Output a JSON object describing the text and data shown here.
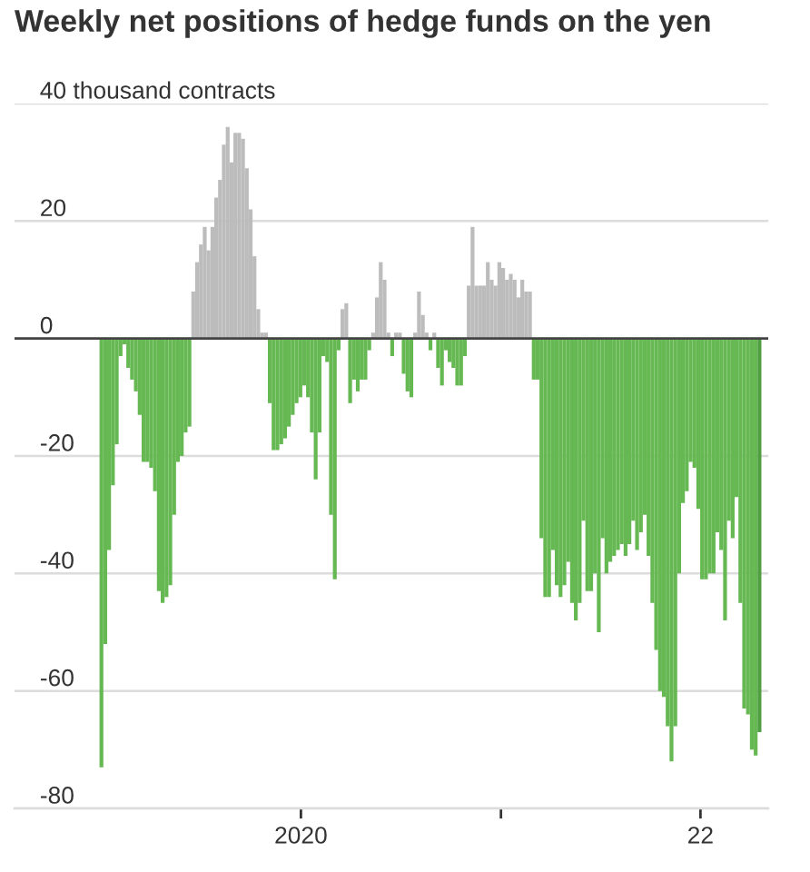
{
  "chart_data": {
    "type": "bar",
    "title": "Weekly net positions of hedge funds on the yen",
    "x": [
      "2019-01-01",
      "2019-01-08",
      "2019-01-15",
      "2019-01-22",
      "2019-01-29",
      "2019-02-05",
      "2019-02-12",
      "2019-02-19",
      "2019-02-26",
      "2019-03-05",
      "2019-03-12",
      "2019-03-19",
      "2019-03-26",
      "2019-04-02",
      "2019-04-09",
      "2019-04-16",
      "2019-04-23",
      "2019-04-30",
      "2019-05-07",
      "2019-05-14",
      "2019-05-21",
      "2019-05-28",
      "2019-06-04",
      "2019-06-11",
      "2019-06-18",
      "2019-06-25",
      "2019-07-02",
      "2019-07-09",
      "2019-07-16",
      "2019-07-23",
      "2019-07-30",
      "2019-08-06",
      "2019-08-13",
      "2019-08-20",
      "2019-08-27",
      "2019-09-03",
      "2019-09-10",
      "2019-09-17",
      "2019-09-24",
      "2019-10-01",
      "2019-10-08",
      "2019-10-15",
      "2019-10-22",
      "2019-10-29",
      "2019-11-05",
      "2019-11-12",
      "2019-11-19",
      "2019-11-26",
      "2019-12-03",
      "2019-12-10",
      "2019-12-17",
      "2019-12-24",
      "2019-12-31",
      "2020-01-07",
      "2020-01-14",
      "2020-01-21",
      "2020-01-28",
      "2020-02-04",
      "2020-02-11",
      "2020-02-18",
      "2020-02-25",
      "2020-03-03",
      "2020-03-10",
      "2020-03-17",
      "2020-03-24",
      "2020-03-31",
      "2020-04-07",
      "2020-04-14",
      "2020-04-21",
      "2020-04-28",
      "2020-05-05",
      "2020-05-12",
      "2020-05-19",
      "2020-05-26",
      "2020-06-02",
      "2020-06-09",
      "2020-06-16",
      "2020-06-23",
      "2020-06-30",
      "2020-07-07",
      "2020-07-14",
      "2020-07-21",
      "2020-07-28",
      "2020-08-04",
      "2020-08-11",
      "2020-08-18",
      "2020-08-25",
      "2020-09-01",
      "2020-09-08",
      "2020-09-15",
      "2020-09-22",
      "2020-09-29",
      "2020-10-06",
      "2020-10-13",
      "2020-10-20",
      "2020-10-27",
      "2020-11-03",
      "2020-11-10",
      "2020-11-17",
      "2020-11-24",
      "2020-12-01",
      "2020-12-08",
      "2020-12-15",
      "2020-12-22",
      "2020-12-29",
      "2021-01-05",
      "2021-01-12",
      "2021-01-19",
      "2021-01-26",
      "2021-02-02",
      "2021-02-09",
      "2021-02-16",
      "2021-02-23",
      "2021-03-02",
      "2021-03-09",
      "2021-03-16",
      "2021-03-23",
      "2021-03-30",
      "2021-04-06",
      "2021-04-13",
      "2021-04-20",
      "2021-04-27",
      "2021-05-04",
      "2021-05-11",
      "2021-05-18",
      "2021-05-25",
      "2021-06-01",
      "2021-06-08",
      "2021-06-15",
      "2021-06-22",
      "2021-06-29",
      "2021-07-06",
      "2021-07-13",
      "2021-07-20",
      "2021-07-27",
      "2021-08-03",
      "2021-08-10",
      "2021-08-17",
      "2021-08-24",
      "2021-08-31",
      "2021-09-07",
      "2021-09-14",
      "2021-09-21",
      "2021-09-28",
      "2021-10-05",
      "2021-10-12",
      "2021-10-19",
      "2021-10-26",
      "2021-11-02",
      "2021-11-09",
      "2021-11-16",
      "2021-11-23",
      "2021-11-30",
      "2021-12-07",
      "2021-12-14",
      "2021-12-21",
      "2021-12-28",
      "2022-01-04",
      "2022-01-11",
      "2022-01-18",
      "2022-01-25",
      "2022-02-01",
      "2022-02-08",
      "2022-02-15",
      "2022-02-22",
      "2022-03-01",
      "2022-03-08",
      "2022-03-15",
      "2022-03-22",
      "2022-03-29",
      "2022-04-05",
      "2022-04-12",
      "2022-04-19"
    ],
    "values": [
      -73,
      -52,
      -36,
      -25,
      -18,
      -3,
      -1,
      -5,
      -7,
      -9,
      -13,
      -21,
      -21,
      -22,
      -26,
      -43,
      -45,
      -44,
      -42,
      -30,
      -21,
      -20,
      -16,
      -15,
      8,
      13,
      16,
      19,
      15,
      19,
      24,
      27,
      33,
      36,
      30,
      35,
      35,
      34,
      29,
      22,
      14,
      5,
      1,
      1,
      -11,
      -19,
      -19,
      -18,
      -17,
      -15,
      -13,
      -11,
      -10,
      -8,
      -10,
      -16,
      -24,
      -16,
      -3,
      -4,
      -30,
      -41,
      -2,
      5,
      6,
      -11,
      -7,
      -9,
      -7,
      -7,
      -2,
      1,
      7,
      13,
      10,
      1,
      -3,
      1,
      1,
      -6,
      -9,
      -10,
      1,
      8,
      4,
      1,
      -2,
      1,
      -5,
      -8,
      -2,
      -4,
      -5,
      -8,
      -8,
      -3,
      9,
      19,
      9,
      9,
      9,
      13,
      10,
      9,
      13,
      12,
      10,
      11,
      10,
      7,
      10,
      8,
      8,
      -7,
      -7,
      -34,
      -44,
      -44,
      -36,
      -42,
      -44,
      -42,
      -38,
      -45,
      -48,
      -45,
      -31,
      -43,
      -43,
      -40,
      -50,
      -34,
      -40,
      -38,
      -37,
      -36,
      -35,
      -37,
      -35,
      -31,
      -36,
      -33,
      -30,
      -37,
      -45,
      -53,
      -60,
      -61,
      -66,
      -72,
      -66,
      -40,
      -28,
      -26,
      -21,
      -22,
      -29,
      -41,
      -41,
      -40,
      -40,
      -33,
      -36,
      -48,
      -31,
      -34,
      -27,
      -45,
      -63,
      -64,
      -70,
      -71,
      -67
    ],
    "colors": [
      "#66b853",
      "#66b853",
      "#66b853",
      "#66b853",
      "#66b853",
      "#66b853",
      "#66b853",
      "#66b853",
      "#66b853",
      "#66b853",
      "#66b853",
      "#66b853",
      "#66b853",
      "#66b853",
      "#66b853",
      "#66b853",
      "#66b853",
      "#66b853",
      "#66b853",
      "#66b853",
      "#66b853",
      "#66b853",
      "#66b853",
      "#66b853",
      "#bcbcbc",
      "#bcbcbc",
      "#bcbcbc",
      "#bcbcbc",
      "#bcbcbc",
      "#bcbcbc",
      "#bcbcbc",
      "#bcbcbc",
      "#bcbcbc",
      "#bcbcbc",
      "#bcbcbc",
      "#bcbcbc",
      "#bcbcbc",
      "#bcbcbc",
      "#bcbcbc",
      "#bcbcbc",
      "#bcbcbc",
      "#bcbcbc",
      "#bcbcbc",
      "#bcbcbc",
      "#66b853",
      "#66b853",
      "#66b853",
      "#66b853",
      "#66b853",
      "#66b853",
      "#66b853",
      "#66b853",
      "#66b853",
      "#66b853",
      "#66b853",
      "#66b853",
      "#66b853",
      "#66b853",
      "#66b853",
      "#66b853",
      "#66b853",
      "#66b853",
      "#66b853",
      "#bcbcbc",
      "#bcbcbc",
      "#66b853",
      "#66b853",
      "#66b853",
      "#66b853",
      "#66b853",
      "#66b853",
      "#bcbcbc",
      "#bcbcbc",
      "#bcbcbc",
      "#bcbcbc",
      "#bcbcbc",
      "#66b853",
      "#bcbcbc",
      "#bcbcbc",
      "#66b853",
      "#66b853",
      "#66b853",
      "#bcbcbc",
      "#bcbcbc",
      "#bcbcbc",
      "#bcbcbc",
      "#66b853",
      "#bcbcbc",
      "#66b853",
      "#66b853",
      "#66b853",
      "#66b853",
      "#66b853",
      "#66b853",
      "#66b853",
      "#66b853",
      "#bcbcbc",
      "#bcbcbc",
      "#bcbcbc",
      "#bcbcbc",
      "#bcbcbc",
      "#bcbcbc",
      "#bcbcbc",
      "#bcbcbc",
      "#bcbcbc",
      "#bcbcbc",
      "#bcbcbc",
      "#bcbcbc",
      "#bcbcbc",
      "#bcbcbc",
      "#bcbcbc",
      "#bcbcbc",
      "#bcbcbc",
      "#66b853",
      "#66b853",
      "#66b853",
      "#66b853",
      "#66b853",
      "#66b853",
      "#66b853",
      "#66b853",
      "#66b853",
      "#66b853",
      "#66b853",
      "#66b853",
      "#66b853",
      "#66b853",
      "#66b853",
      "#66b853",
      "#66b853",
      "#66b853",
      "#66b853",
      "#66b853",
      "#66b853",
      "#66b853",
      "#66b853",
      "#66b853",
      "#66b853",
      "#66b853",
      "#66b853",
      "#66b853",
      "#66b853",
      "#66b853",
      "#66b853",
      "#66b853",
      "#66b853",
      "#66b853",
      "#66b853",
      "#66b853",
      "#66b853",
      "#66b853",
      "#66b853",
      "#66b853",
      "#66b853",
      "#66b853",
      "#66b853",
      "#66b853",
      "#66b853",
      "#66b853",
      "#66b853",
      "#66b853",
      "#66b853",
      "#66b853",
      "#66b853",
      "#66b853",
      "#66b853",
      "#66b853",
      "#66b853",
      "#66b853",
      "#66b853",
      "#66b853",
      "#66b853",
      "#4e9e42"
    ],
    "ylim": [
      -80,
      40
    ],
    "yticks": [
      -80,
      -60,
      -40,
      -20,
      0,
      20,
      {
        "value": 40,
        "label": "40 thousand contracts"
      }
    ],
    "xlim": [
      "2018-07-26",
      "2022-05-05"
    ],
    "xticks": [
      {
        "value": "2020",
        "label": "2020"
      },
      {
        "value": "2021",
        "label": null
      },
      {
        "value": "2022",
        "label": "22"
      }
    ],
    "grid": "y",
    "ref_lines": [
      {
        "axis": "y",
        "value": 0,
        "color": "#444444"
      }
    ]
  }
}
